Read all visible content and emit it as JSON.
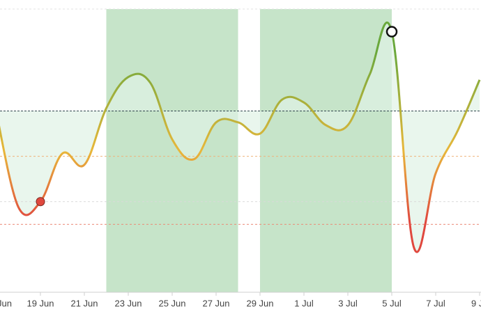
{
  "chart_data": {
    "type": "line",
    "categories": [
      "Jun",
      null,
      "19 Jun",
      null,
      "21 Jun",
      null,
      "23 Jun",
      null,
      "25 Jun",
      null,
      "27 Jun",
      null,
      "29 Jun",
      null,
      "1 Jul",
      null,
      "3 Jul",
      null,
      "5 Jul",
      null,
      "7 Jul",
      null,
      "9 J"
    ],
    "values": [
      63,
      30,
      32,
      49,
      45,
      65,
      76,
      74,
      54,
      47,
      60,
      60,
      56,
      68,
      67,
      59,
      59,
      77,
      92,
      16,
      42,
      57,
      75
    ],
    "ylim": [
      0,
      100
    ],
    "baseline": 64,
    "baseline_color": "#33474f",
    "reference_lines": [
      {
        "value": 48,
        "color": "#f0b27a"
      },
      {
        "value": 24,
        "color": "#ec8a78"
      },
      {
        "value": 32,
        "color": "#d9d9d9"
      },
      {
        "value": 100,
        "color": "#e3e3e3"
      }
    ],
    "highlight_ranges": [
      [
        5,
        11
      ],
      [
        12,
        18
      ]
    ],
    "highlight_color": "#c6e4c9",
    "area_color": "#dff2e6",
    "line_colors": {
      "high": "#6aa83c",
      "mid": "#e8b73a",
      "low": "#e0483e"
    },
    "markers": [
      {
        "index": 2,
        "fill": "#e0483e",
        "stroke": "#7a2a22"
      },
      {
        "index": 18,
        "fill": "#ffffff",
        "stroke": "#111111"
      }
    ]
  }
}
